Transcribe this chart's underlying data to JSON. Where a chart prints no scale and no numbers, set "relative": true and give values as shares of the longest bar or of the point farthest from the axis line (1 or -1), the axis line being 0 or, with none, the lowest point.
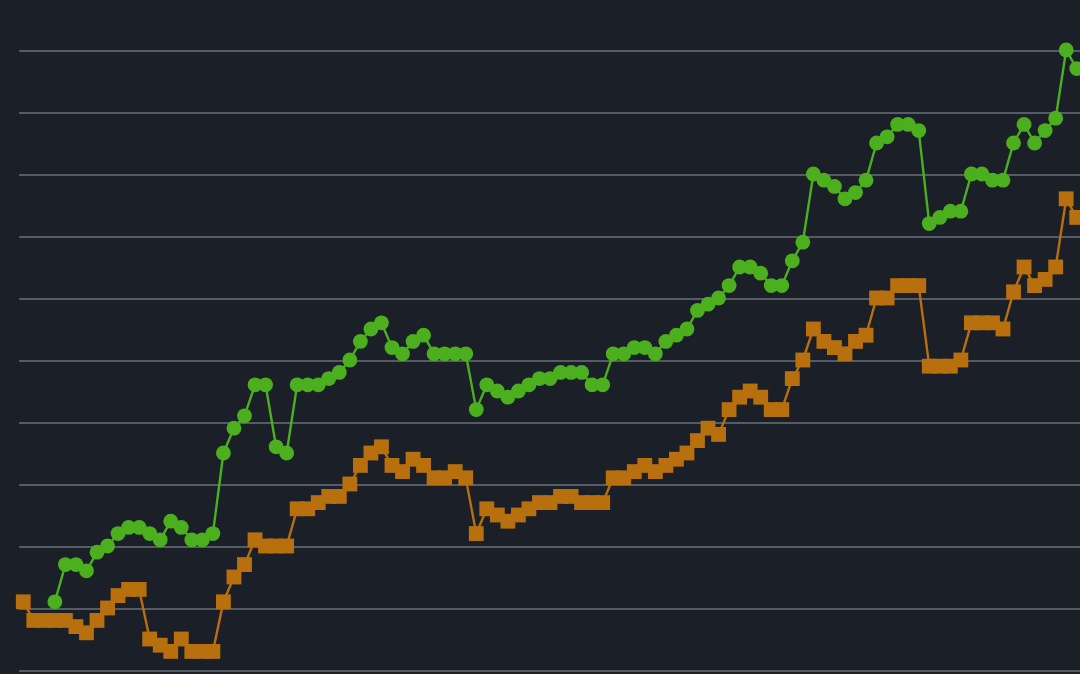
{
  "chart_data": {
    "type": "line",
    "relative": true,
    "grid": "y",
    "categories": [
      null,
      null,
      null,
      null,
      null,
      null,
      null,
      null,
      null,
      null,
      null,
      null,
      null,
      null,
      null,
      null,
      null,
      null,
      null,
      null,
      null,
      null,
      null,
      null,
      null,
      null,
      null,
      null,
      null,
      null,
      null,
      null,
      null,
      null,
      null,
      null,
      null,
      null,
      null,
      null,
      null,
      null,
      null,
      null,
      null,
      null,
      null,
      null,
      null,
      null,
      null,
      null,
      null,
      null,
      null,
      null,
      null,
      null,
      null,
      null,
      null,
      null,
      null,
      null,
      null,
      null,
      null,
      null,
      null,
      null,
      null,
      null,
      null,
      null,
      null,
      null,
      null,
      null,
      null,
      null,
      null,
      null,
      null,
      null,
      null,
      null,
      null,
      null,
      null,
      null,
      null,
      null,
      null,
      null,
      null,
      null,
      null,
      null,
      null,
      null,
      null
    ],
    "series": [
      {
        "color": "#4caf1e",
        "marker": "circle",
        "values": [
          null,
          null,
          null,
          0.11,
          0.17,
          0.17,
          0.16,
          0.19,
          0.2,
          0.22,
          0.23,
          0.23,
          0.22,
          0.21,
          0.24,
          0.23,
          0.21,
          0.21,
          0.22,
          0.35,
          0.39,
          0.41,
          0.46,
          0.46,
          0.36,
          0.35,
          0.46,
          0.46,
          0.46,
          0.47,
          0.48,
          0.5,
          0.53,
          0.55,
          0.56,
          0.52,
          0.51,
          0.53,
          0.54,
          0.51,
          0.51,
          0.51,
          0.51,
          0.42,
          0.46,
          0.45,
          0.44,
          0.45,
          0.46,
          0.47,
          0.47,
          0.48,
          0.48,
          0.48,
          0.46,
          0.46,
          0.51,
          0.51,
          0.52,
          0.52,
          0.51,
          0.53,
          0.54,
          0.55,
          0.58,
          0.59,
          0.6,
          0.62,
          0.65,
          0.65,
          0.64,
          0.62,
          0.62,
          0.66,
          0.69,
          0.8,
          0.79,
          0.78,
          0.76,
          0.77,
          0.79,
          0.85,
          0.86,
          0.88,
          0.88,
          0.87,
          0.72,
          0.73,
          0.74,
          0.74,
          0.8,
          0.8,
          0.79,
          0.79,
          0.85,
          0.88,
          0.85,
          0.87,
          0.89,
          1,
          0.97
        ]
      },
      {
        "color": "#b8700f",
        "marker": "square",
        "values": [
          0.11,
          0.08,
          0.08,
          0.08,
          0.08,
          0.07,
          0.06,
          0.08,
          0.1,
          0.12,
          0.13,
          0.13,
          0.05,
          0.04,
          0.03,
          0.05,
          0.03,
          0.03,
          0.03,
          0.11,
          0.15,
          0.17,
          0.21,
          0.2,
          0.2,
          0.2,
          0.26,
          0.26,
          0.27,
          0.28,
          0.28,
          0.3,
          0.33,
          0.35,
          0.36,
          0.33,
          0.32,
          0.34,
          0.33,
          0.31,
          0.31,
          0.32,
          0.31,
          0.22,
          0.26,
          0.25,
          0.24,
          0.25,
          0.26,
          0.27,
          0.27,
          0.28,
          0.28,
          0.27,
          0.27,
          0.27,
          0.31,
          0.31,
          0.32,
          0.33,
          0.32,
          0.33,
          0.34,
          0.35,
          0.37,
          0.39,
          0.38,
          0.42,
          0.44,
          0.45,
          0.44,
          0.42,
          0.42,
          0.47,
          0.5,
          0.55,
          0.53,
          0.52,
          0.51,
          0.53,
          0.54,
          0.6,
          0.6,
          0.62,
          0.62,
          0.62,
          0.49,
          0.49,
          0.49,
          0.5,
          0.56,
          0.56,
          0.56,
          0.55,
          0.61,
          0.65,
          0.62,
          0.63,
          0.65,
          0.76,
          0.73
        ]
      }
    ]
  }
}
